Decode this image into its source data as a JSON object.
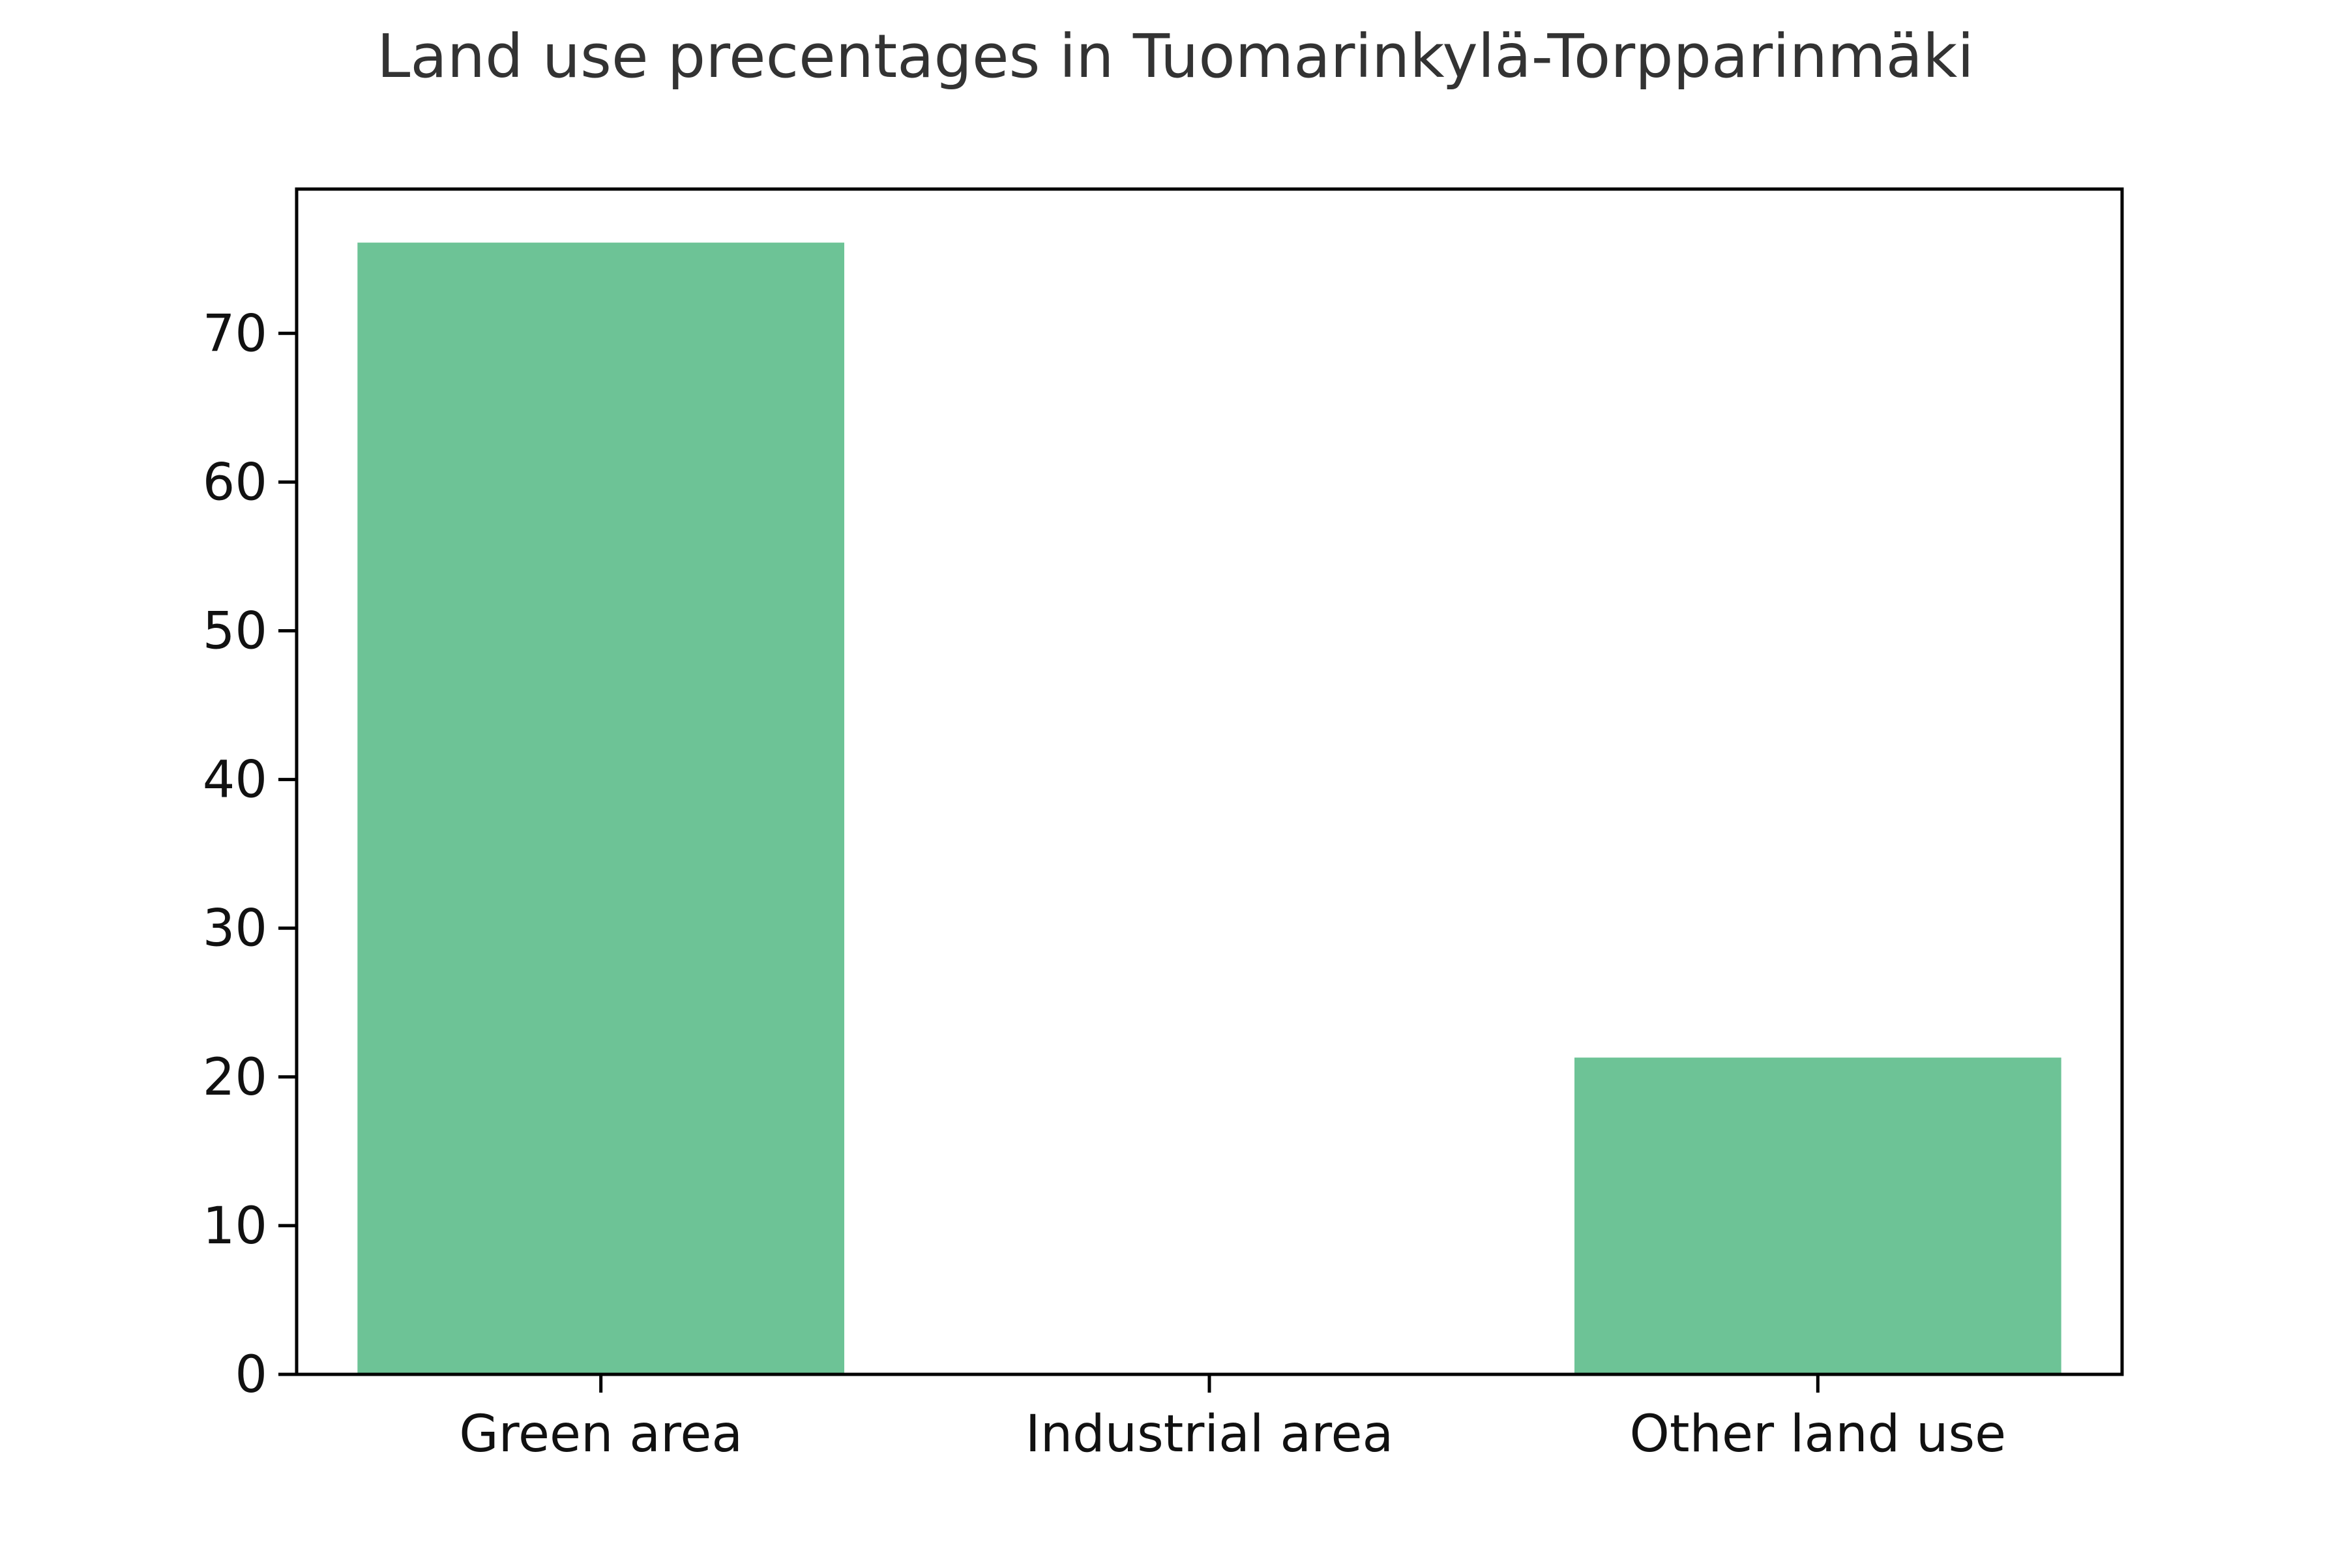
{
  "chart_data": {
    "type": "bar",
    "title": "Land use precentages in Tuomarinkylä-Torpparinmäki",
    "xlabel": "",
    "ylabel": "",
    "categories": [
      "Green area",
      "Industrial area",
      "Other land use"
    ],
    "values": [
      76.1,
      0,
      21.3
    ],
    "ylim": [
      0,
      79.7
    ],
    "yticks": [
      0,
      10,
      20,
      30,
      40,
      50,
      60,
      70
    ],
    "bar_color": "#6dc396",
    "grid": false,
    "legend": "none"
  }
}
